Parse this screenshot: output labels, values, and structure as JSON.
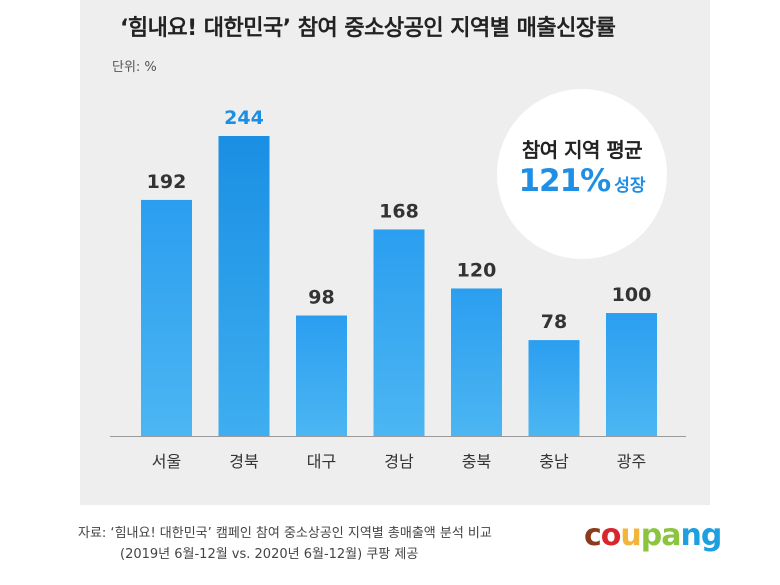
{
  "title": "‘힘내요! 대한민국’ 참여 중소상공인 지역별 매출신장률",
  "unit_label": "단위: %",
  "average": {
    "label": "참여 지역 평균",
    "value": "121%",
    "suffix": "성장"
  },
  "chart_data": {
    "type": "bar",
    "categories": [
      "서울",
      "경북",
      "대구",
      "경남",
      "충북",
      "충남",
      "광주"
    ],
    "values": [
      192,
      244,
      98,
      168,
      120,
      78,
      100
    ],
    "value_labels": [
      "192",
      "244",
      "98",
      "168",
      "120",
      "78",
      "100"
    ],
    "highlight_index": 1,
    "bar_color": "#36a9ef",
    "highlight_color": "#1a8fe3",
    "label_color": "#333333",
    "highlight_label_color": "#1a8fe3",
    "ylim": [
      0,
      244
    ],
    "grid": false
  },
  "source": {
    "line1": "자료: ‘힘내요! 대한민국’ 캠페인 참여 중소상공인 지역별 총매출액 분석 비교",
    "line2": "(2019년 6월-12월 vs. 2020년 6월-12월) 쿠팡 제공"
  },
  "logo": {
    "letters": [
      {
        "ch": "c",
        "color": "#8b3a1c"
      },
      {
        "ch": "o",
        "color": "#d8262d"
      },
      {
        "ch": "u",
        "color": "#f2b43b"
      },
      {
        "ch": "p",
        "color": "#8bc53f"
      },
      {
        "ch": "a",
        "color": "#8bc53f"
      },
      {
        "ch": "n",
        "color": "#1ea0e0"
      },
      {
        "ch": "g",
        "color": "#1ea0e0"
      }
    ]
  }
}
